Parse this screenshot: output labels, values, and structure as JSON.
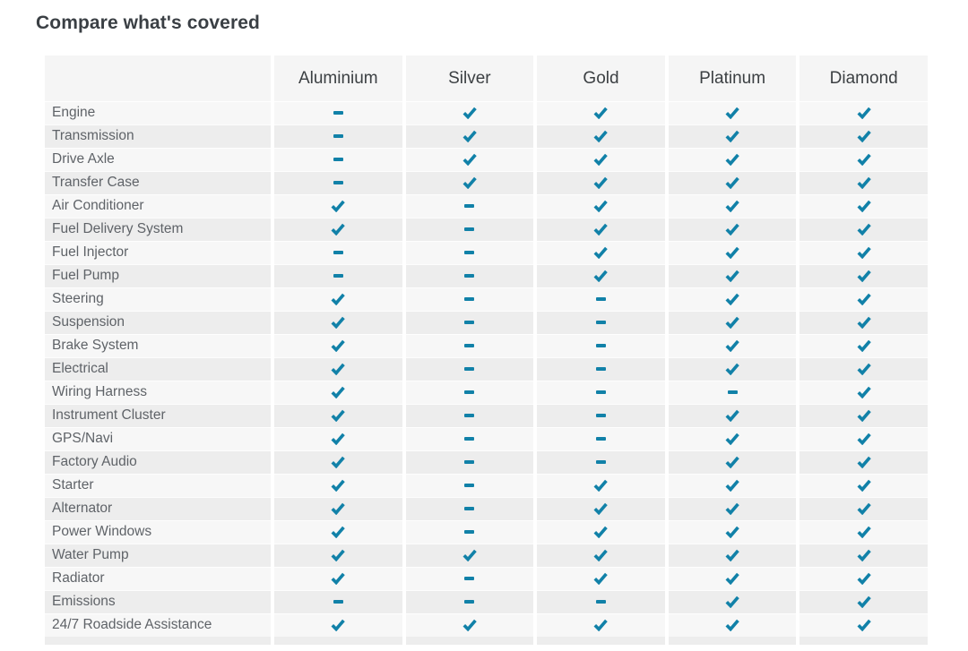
{
  "title": "Compare what's covered",
  "colors": {
    "check": "#1181a8",
    "stripe_light": "#f7f7f7",
    "stripe_dark": "#ededed",
    "header_bg": "#f5f5f5"
  },
  "table": {
    "columns": [
      "Aluminium",
      "Silver",
      "Gold",
      "Platinum",
      "Diamond"
    ],
    "rows": [
      {
        "label": "Engine",
        "values": [
          "dash",
          "check",
          "check",
          "check",
          "check"
        ]
      },
      {
        "label": "Transmission",
        "values": [
          "dash",
          "check",
          "check",
          "check",
          "check"
        ]
      },
      {
        "label": "Drive Axle",
        "values": [
          "dash",
          "check",
          "check",
          "check",
          "check"
        ]
      },
      {
        "label": "Transfer Case",
        "values": [
          "dash",
          "check",
          "check",
          "check",
          "check"
        ]
      },
      {
        "label": "Air Conditioner",
        "values": [
          "check",
          "dash",
          "check",
          "check",
          "check"
        ]
      },
      {
        "label": "Fuel Delivery System",
        "values": [
          "check",
          "dash",
          "check",
          "check",
          "check"
        ]
      },
      {
        "label": "Fuel Injector",
        "values": [
          "dash",
          "dash",
          "check",
          "check",
          "check"
        ]
      },
      {
        "label": "Fuel Pump",
        "values": [
          "dash",
          "dash",
          "check",
          "check",
          "check"
        ]
      },
      {
        "label": "Steering",
        "values": [
          "check",
          "dash",
          "dash",
          "check",
          "check"
        ]
      },
      {
        "label": "Suspension",
        "values": [
          "check",
          "dash",
          "dash",
          "check",
          "check"
        ]
      },
      {
        "label": "Brake System",
        "values": [
          "check",
          "dash",
          "dash",
          "check",
          "check"
        ]
      },
      {
        "label": "Electrical",
        "values": [
          "check",
          "dash",
          "dash",
          "check",
          "check"
        ]
      },
      {
        "label": "Wiring Harness",
        "values": [
          "check",
          "dash",
          "dash",
          "dash",
          "check"
        ]
      },
      {
        "label": "Instrument Cluster",
        "values": [
          "check",
          "dash",
          "dash",
          "check",
          "check"
        ]
      },
      {
        "label": "GPS/Navi",
        "values": [
          "check",
          "dash",
          "dash",
          "check",
          "check"
        ]
      },
      {
        "label": "Factory Audio",
        "values": [
          "check",
          "dash",
          "dash",
          "check",
          "check"
        ]
      },
      {
        "label": "Starter",
        "values": [
          "check",
          "dash",
          "check",
          "check",
          "check"
        ]
      },
      {
        "label": "Alternator",
        "values": [
          "check",
          "dash",
          "check",
          "check",
          "check"
        ]
      },
      {
        "label": "Power Windows",
        "values": [
          "check",
          "dash",
          "check",
          "check",
          "check"
        ]
      },
      {
        "label": "Water Pump",
        "values": [
          "check",
          "check",
          "check",
          "check",
          "check"
        ]
      },
      {
        "label": "Radiator",
        "values": [
          "check",
          "dash",
          "check",
          "check",
          "check"
        ]
      },
      {
        "label": "Emissions",
        "values": [
          "dash",
          "dash",
          "dash",
          "check",
          "check"
        ]
      },
      {
        "label": "24/7 Roadside Assistance",
        "values": [
          "check",
          "check",
          "check",
          "check",
          "check"
        ]
      }
    ]
  }
}
